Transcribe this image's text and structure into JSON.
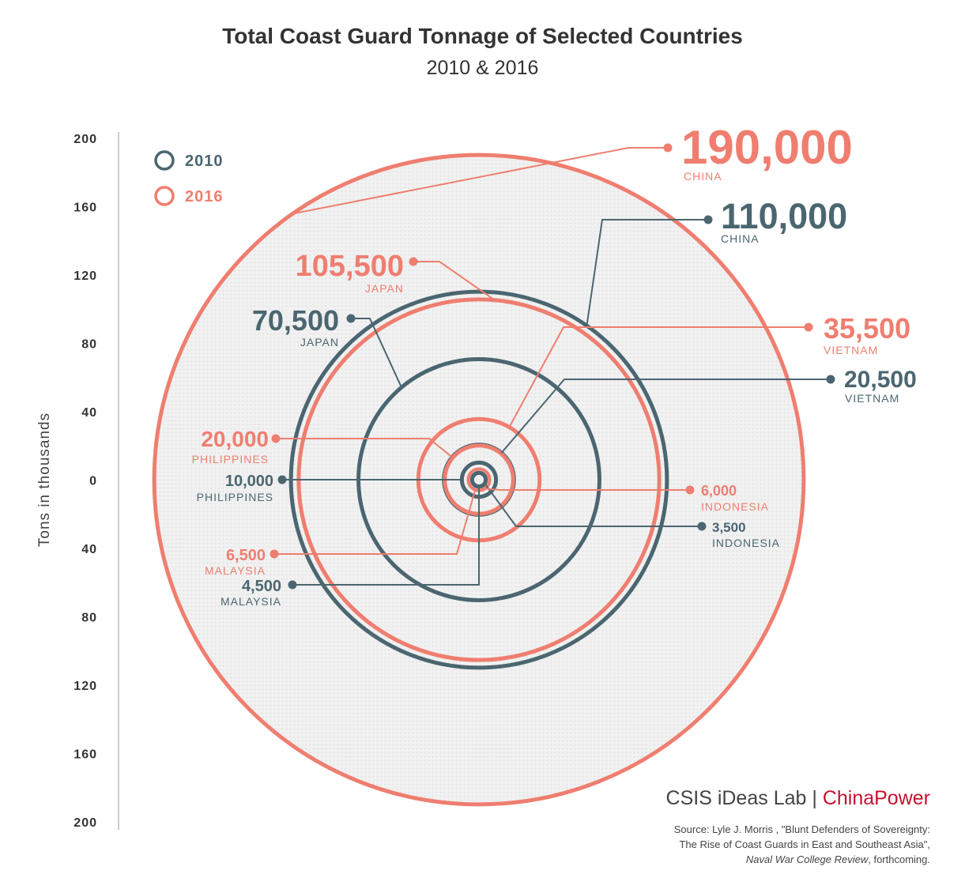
{
  "title": "Total Coast Guard Tonnage of Selected Countries",
  "subtitle": "2010 & 2016",
  "brand": {
    "org": "CSIS iDeas Lab",
    "separator": "|",
    "product": "ChinaPower"
  },
  "source": {
    "line1": "Source: Lyle J. Morris , \"Blunt Defenders of Sovereignty:",
    "line2": "The Rise of Coast Guards in East and Southeast Asia\",",
    "journal": "Naval War College Review",
    "line3_suffix": ", forthcoming."
  },
  "colors": {
    "y2010": "#4b6670",
    "y2016": "#ef7e70",
    "fill": "#eeeeee",
    "axis": "#cccccc"
  },
  "chart_data": {
    "type": "concentric-circles",
    "title": "Total Coast Guard Tonnage of Selected Countries",
    "subtitle": "2010 & 2016",
    "ylabel": "Tons in thousands",
    "ylim": [
      -200,
      200
    ],
    "ytick_labels": [
      "200",
      "160",
      "120",
      "80",
      "40",
      "0",
      "40",
      "80",
      "120",
      "160",
      "200"
    ],
    "legend": [
      "2010",
      "2016"
    ],
    "legend_position": "top-left",
    "series": [
      {
        "name": "2010",
        "points": [
          {
            "country": "CHINA",
            "value": 110000,
            "label": "110,000"
          },
          {
            "country": "JAPAN",
            "value": 70500,
            "label": "70,500"
          },
          {
            "country": "VIETNAM",
            "value": 20500,
            "label": "20,500"
          },
          {
            "country": "PHILIPPINES",
            "value": 10000,
            "label": "10,000"
          },
          {
            "country": "MALAYSIA",
            "value": 4500,
            "label": "4,500"
          },
          {
            "country": "INDONESIA",
            "value": 3500,
            "label": "3,500"
          }
        ]
      },
      {
        "name": "2016",
        "points": [
          {
            "country": "CHINA",
            "value": 190000,
            "label": "190,000"
          },
          {
            "country": "JAPAN",
            "value": 105500,
            "label": "105,500"
          },
          {
            "country": "VIETNAM",
            "value": 35500,
            "label": "35,500"
          },
          {
            "country": "PHILIPPINES",
            "value": 20000,
            "label": "20,000"
          },
          {
            "country": "MALAYSIA",
            "value": 6500,
            "label": "6,500"
          },
          {
            "country": "INDONESIA",
            "value": 6000,
            "label": "6,000"
          }
        ]
      }
    ]
  }
}
